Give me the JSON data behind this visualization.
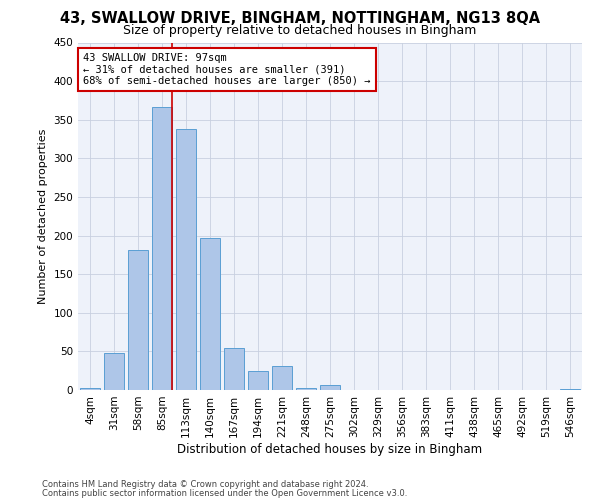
{
  "title1": "43, SWALLOW DRIVE, BINGHAM, NOTTINGHAM, NG13 8QA",
  "title2": "Size of property relative to detached houses in Bingham",
  "xlabel": "Distribution of detached houses by size in Bingham",
  "ylabel": "Number of detached properties",
  "categories": [
    "4sqm",
    "31sqm",
    "58sqm",
    "85sqm",
    "113sqm",
    "140sqm",
    "167sqm",
    "194sqm",
    "221sqm",
    "248sqm",
    "275sqm",
    "302sqm",
    "329sqm",
    "356sqm",
    "383sqm",
    "411sqm",
    "438sqm",
    "465sqm",
    "492sqm",
    "519sqm",
    "546sqm"
  ],
  "values": [
    2,
    48,
    181,
    367,
    338,
    197,
    55,
    25,
    31,
    3,
    6,
    0,
    0,
    0,
    0,
    0,
    0,
    0,
    0,
    0,
    1
  ],
  "bar_color": "#aec6e8",
  "bar_edge_color": "#5a9fd4",
  "highlight_line_color": "#cc0000",
  "annotation_text": "43 SWALLOW DRIVE: 97sqm\n← 31% of detached houses are smaller (391)\n68% of semi-detached houses are larger (850) →",
  "annotation_box_color": "#ffffff",
  "annotation_box_edge": "#cc0000",
  "grid_color": "#c8d0e0",
  "bg_color": "#eef2fa",
  "ylim": [
    0,
    450
  ],
  "yticks": [
    0,
    50,
    100,
    150,
    200,
    250,
    300,
    350,
    400,
    450
  ],
  "footer1": "Contains HM Land Registry data © Crown copyright and database right 2024.",
  "footer2": "Contains public sector information licensed under the Open Government Licence v3.0.",
  "title1_fontsize": 10.5,
  "title2_fontsize": 9,
  "xlabel_fontsize": 8.5,
  "ylabel_fontsize": 8,
  "tick_fontsize": 7.5,
  "annotation_fontsize": 7.5,
  "footer_fontsize": 6,
  "red_line_x": 3.43
}
